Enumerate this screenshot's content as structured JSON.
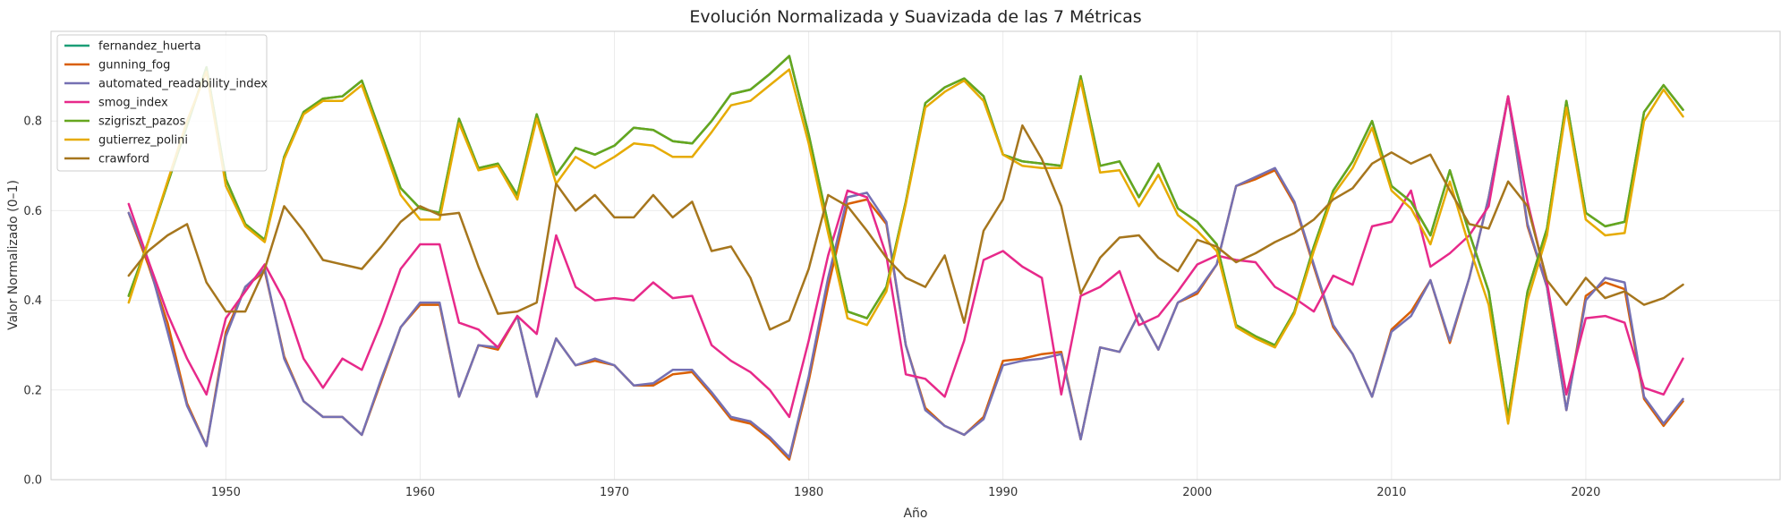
{
  "chart_data": {
    "type": "line",
    "title": "Evolución Normalizada y Suavizada de las 7 Métricas",
    "xlabel": "Año",
    "ylabel": "Valor Normalizado (0–1)",
    "xlim": [
      1941,
      2030
    ],
    "ylim": [
      0,
      1.0
    ],
    "x_ticks": [
      1950,
      1960,
      1970,
      1980,
      1990,
      2000,
      2010,
      2020
    ],
    "y_ticks": [
      0.0,
      0.2,
      0.4,
      0.6,
      0.8
    ],
    "grid": true,
    "legend_position": "top-left",
    "x": [
      1945,
      1946,
      1947,
      1948,
      1949,
      1950,
      1951,
      1952,
      1953,
      1954,
      1955,
      1956,
      1957,
      1958,
      1959,
      1960,
      1961,
      1962,
      1963,
      1964,
      1965,
      1966,
      1967,
      1968,
      1969,
      1970,
      1971,
      1972,
      1973,
      1974,
      1975,
      1976,
      1977,
      1978,
      1979,
      1980,
      1981,
      1982,
      1983,
      1984,
      1985,
      1986,
      1987,
      1988,
      1989,
      1990,
      1991,
      1992,
      1993,
      1994,
      1995,
      1996,
      1997,
      1998,
      1999,
      2000,
      2001,
      2002,
      2003,
      2004,
      2005,
      2006,
      2007,
      2008,
      2009,
      2010,
      2011,
      2012,
      2013,
      2014,
      2015,
      2016,
      2017,
      2018,
      2019,
      2020,
      2021,
      2022,
      2023,
      2024,
      2025
    ],
    "series": [
      {
        "name": "fernandez_huerta",
        "color": "#1b9e77",
        "values": [
          0.41,
          0.53,
          0.66,
          0.79,
          0.92,
          0.67,
          0.57,
          0.535,
          0.72,
          0.82,
          0.85,
          0.855,
          0.89,
          0.77,
          0.65,
          0.605,
          0.595,
          0.805,
          0.695,
          0.705,
          0.635,
          0.815,
          0.68,
          0.74,
          0.725,
          0.745,
          0.785,
          0.78,
          0.755,
          0.75,
          0.8,
          0.86,
          0.87,
          0.905,
          0.945,
          0.77,
          0.57,
          0.375,
          0.36,
          0.43,
          0.62,
          0.84,
          0.875,
          0.895,
          0.855,
          0.725,
          0.71,
          0.705,
          0.7,
          0.9,
          0.7,
          0.71,
          0.63,
          0.705,
          0.605,
          0.575,
          0.525,
          0.345,
          0.32,
          0.3,
          0.375,
          0.52,
          0.645,
          0.71,
          0.8,
          0.655,
          0.62,
          0.545,
          0.69,
          0.55,
          0.42,
          0.14,
          0.42,
          0.56,
          0.845,
          0.595,
          0.565,
          0.575,
          0.82,
          0.88,
          0.825
        ]
      },
      {
        "name": "gunning_fog",
        "color": "#d95f02",
        "values": [
          0.595,
          0.48,
          0.35,
          0.17,
          0.075,
          0.33,
          0.43,
          0.465,
          0.275,
          0.175,
          0.14,
          0.14,
          0.1,
          0.22,
          0.34,
          0.39,
          0.39,
          0.185,
          0.3,
          0.29,
          0.365,
          0.185,
          0.315,
          0.255,
          0.265,
          0.255,
          0.21,
          0.21,
          0.235,
          0.24,
          0.19,
          0.135,
          0.125,
          0.09,
          0.045,
          0.22,
          0.43,
          0.615,
          0.625,
          0.57,
          0.3,
          0.16,
          0.12,
          0.1,
          0.14,
          0.265,
          0.27,
          0.28,
          0.285,
          0.09,
          0.295,
          0.285,
          0.37,
          0.29,
          0.395,
          0.415,
          0.48,
          0.655,
          0.67,
          0.69,
          0.615,
          0.475,
          0.34,
          0.28,
          0.185,
          0.335,
          0.375,
          0.445,
          0.305,
          0.45,
          0.63,
          0.855,
          0.565,
          0.43,
          0.155,
          0.41,
          0.44,
          0.425,
          0.18,
          0.12,
          0.175
        ]
      },
      {
        "name": "automated_readability_index",
        "color": "#7570b3",
        "values": [
          0.595,
          0.49,
          0.33,
          0.165,
          0.075,
          0.32,
          0.43,
          0.47,
          0.27,
          0.175,
          0.14,
          0.14,
          0.1,
          0.225,
          0.34,
          0.395,
          0.395,
          0.185,
          0.3,
          0.295,
          0.365,
          0.185,
          0.315,
          0.255,
          0.27,
          0.255,
          0.21,
          0.215,
          0.245,
          0.245,
          0.195,
          0.14,
          0.13,
          0.095,
          0.05,
          0.23,
          0.45,
          0.63,
          0.64,
          0.575,
          0.3,
          0.155,
          0.12,
          0.1,
          0.135,
          0.255,
          0.265,
          0.27,
          0.28,
          0.09,
          0.295,
          0.285,
          0.37,
          0.29,
          0.395,
          0.42,
          0.48,
          0.655,
          0.675,
          0.695,
          0.62,
          0.48,
          0.345,
          0.28,
          0.185,
          0.33,
          0.365,
          0.445,
          0.31,
          0.45,
          0.63,
          0.855,
          0.57,
          0.43,
          0.155,
          0.4,
          0.45,
          0.44,
          0.185,
          0.125,
          0.18
        ]
      },
      {
        "name": "smog_index",
        "color": "#e7298a",
        "values": [
          0.615,
          0.49,
          0.37,
          0.27,
          0.19,
          0.36,
          0.42,
          0.48,
          0.4,
          0.27,
          0.205,
          0.27,
          0.245,
          0.35,
          0.47,
          0.525,
          0.525,
          0.35,
          0.335,
          0.295,
          0.365,
          0.325,
          0.545,
          0.43,
          0.4,
          0.405,
          0.4,
          0.44,
          0.405,
          0.41,
          0.3,
          0.265,
          0.24,
          0.2,
          0.14,
          0.31,
          0.5,
          0.645,
          0.63,
          0.5,
          0.235,
          0.225,
          0.185,
          0.31,
          0.49,
          0.51,
          0.475,
          0.45,
          0.19,
          0.41,
          0.43,
          0.465,
          0.345,
          0.365,
          0.42,
          0.48,
          0.5,
          0.49,
          0.485,
          0.43,
          0.405,
          0.375,
          0.455,
          0.435,
          0.565,
          0.575,
          0.645,
          0.475,
          0.505,
          0.545,
          0.61,
          0.855,
          0.62,
          0.44,
          0.19,
          0.36,
          0.365,
          0.35,
          0.205,
          0.19,
          0.27
        ]
      },
      {
        "name": "szigriszt_pazos",
        "color": "#66a61e",
        "values": [
          0.41,
          0.53,
          0.66,
          0.79,
          0.92,
          0.67,
          0.57,
          0.535,
          0.72,
          0.82,
          0.85,
          0.855,
          0.89,
          0.77,
          0.65,
          0.605,
          0.595,
          0.805,
          0.695,
          0.705,
          0.635,
          0.815,
          0.68,
          0.74,
          0.725,
          0.745,
          0.785,
          0.78,
          0.755,
          0.75,
          0.8,
          0.86,
          0.87,
          0.905,
          0.945,
          0.77,
          0.57,
          0.375,
          0.36,
          0.43,
          0.62,
          0.84,
          0.875,
          0.895,
          0.855,
          0.725,
          0.71,
          0.705,
          0.7,
          0.9,
          0.7,
          0.71,
          0.63,
          0.705,
          0.605,
          0.575,
          0.525,
          0.345,
          0.32,
          0.3,
          0.375,
          0.52,
          0.645,
          0.71,
          0.8,
          0.655,
          0.62,
          0.545,
          0.69,
          0.55,
          0.42,
          0.14,
          0.42,
          0.56,
          0.845,
          0.595,
          0.565,
          0.575,
          0.82,
          0.88,
          0.825
        ]
      },
      {
        "name": "gutierrez_polini",
        "color": "#e6ab02",
        "values": [
          0.395,
          0.53,
          0.665,
          0.8,
          0.91,
          0.655,
          0.565,
          0.53,
          0.715,
          0.815,
          0.845,
          0.845,
          0.88,
          0.76,
          0.635,
          0.58,
          0.58,
          0.795,
          0.69,
          0.7,
          0.625,
          0.805,
          0.66,
          0.72,
          0.695,
          0.72,
          0.75,
          0.745,
          0.72,
          0.72,
          0.775,
          0.835,
          0.845,
          0.88,
          0.915,
          0.75,
          0.55,
          0.36,
          0.345,
          0.42,
          0.615,
          0.83,
          0.865,
          0.89,
          0.845,
          0.725,
          0.7,
          0.695,
          0.695,
          0.89,
          0.685,
          0.69,
          0.61,
          0.68,
          0.59,
          0.555,
          0.51,
          0.34,
          0.315,
          0.295,
          0.37,
          0.51,
          0.635,
          0.695,
          0.785,
          0.645,
          0.605,
          0.525,
          0.665,
          0.52,
          0.39,
          0.125,
          0.4,
          0.545,
          0.83,
          0.58,
          0.545,
          0.55,
          0.8,
          0.87,
          0.81
        ]
      },
      {
        "name": "crawford",
        "color": "#a6761d",
        "values": [
          0.455,
          0.51,
          0.545,
          0.57,
          0.44,
          0.375,
          0.375,
          0.47,
          0.61,
          0.555,
          0.49,
          0.48,
          0.47,
          0.52,
          0.575,
          0.61,
          0.59,
          0.595,
          0.475,
          0.37,
          0.375,
          0.395,
          0.66,
          0.6,
          0.635,
          0.585,
          0.585,
          0.635,
          0.585,
          0.62,
          0.51,
          0.52,
          0.45,
          0.335,
          0.355,
          0.47,
          0.635,
          0.61,
          0.555,
          0.495,
          0.45,
          0.43,
          0.5,
          0.35,
          0.555,
          0.625,
          0.79,
          0.715,
          0.61,
          0.415,
          0.495,
          0.54,
          0.545,
          0.495,
          0.465,
          0.535,
          0.52,
          0.485,
          0.505,
          0.53,
          0.55,
          0.58,
          0.625,
          0.65,
          0.705,
          0.73,
          0.705,
          0.725,
          0.645,
          0.57,
          0.56,
          0.665,
          0.61,
          0.445,
          0.39,
          0.45,
          0.405,
          0.42,
          0.39,
          0.405,
          0.435
        ]
      }
    ]
  }
}
